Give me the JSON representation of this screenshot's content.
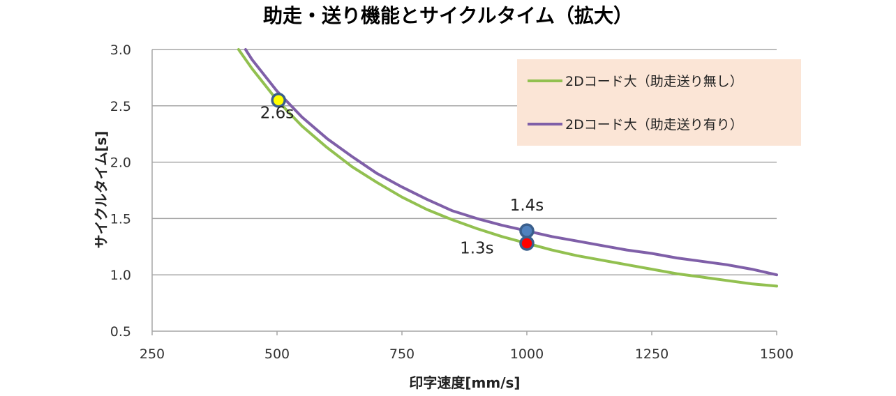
{
  "chart_data": {
    "type": "line",
    "title": "助走・送り機能とサイクルタイム（拡大）",
    "xlabel": "印字速度[mm/s]",
    "ylabel": "サイクルタイム[s]",
    "xlim": [
      250,
      1500
    ],
    "ylim": [
      0.5,
      3.0
    ],
    "x_ticks": [
      "250",
      "500",
      "750",
      "1000",
      "1250",
      "1500"
    ],
    "y_ticks": [
      "0.5",
      "1.0",
      "1.5",
      "2.0",
      "2.5",
      "3.0"
    ],
    "grid": true,
    "legend_position": "top-right",
    "legend_bg": "#fbe5d6",
    "series": [
      {
        "name": "2Dコード大（助走送り無し）",
        "color": "#92c050",
        "x": [
          423,
          450,
          500,
          550,
          600,
          650,
          700,
          750,
          800,
          850,
          900,
          950,
          1000,
          1050,
          1100,
          1150,
          1200,
          1250,
          1300,
          1350,
          1400,
          1450,
          1500
        ],
        "y": [
          3.0,
          2.83,
          2.55,
          2.32,
          2.13,
          1.96,
          1.82,
          1.69,
          1.58,
          1.49,
          1.41,
          1.34,
          1.28,
          1.22,
          1.17,
          1.13,
          1.09,
          1.05,
          1.01,
          0.98,
          0.95,
          0.92,
          0.9
        ]
      },
      {
        "name": "2Dコード大（助走送り有り）",
        "color": "#7f5fa8",
        "x": [
          437,
          450,
          500,
          550,
          600,
          650,
          700,
          750,
          800,
          850,
          900,
          950,
          1000,
          1050,
          1100,
          1150,
          1200,
          1250,
          1300,
          1350,
          1400,
          1450,
          1500
        ],
        "y": [
          3.0,
          2.91,
          2.63,
          2.4,
          2.21,
          2.05,
          1.9,
          1.78,
          1.67,
          1.57,
          1.5,
          1.44,
          1.39,
          1.34,
          1.3,
          1.26,
          1.22,
          1.19,
          1.15,
          1.12,
          1.09,
          1.05,
          1.0
        ]
      }
    ],
    "markers": [
      {
        "x": 503,
        "y": 2.55,
        "fill": "#ffff00",
        "stroke": "#3a5f8c"
      },
      {
        "x": 1000,
        "y": 1.39,
        "fill": "#4f81bd",
        "stroke": "#3a5f8c"
      },
      {
        "x": 1000,
        "y": 1.28,
        "fill": "#ff0000",
        "stroke": "#3a5f8c"
      }
    ],
    "annotations": [
      {
        "text": "2.6s",
        "x": 500,
        "y": 2.39
      },
      {
        "text": "1.4s",
        "x": 1000,
        "y": 1.57
      },
      {
        "text": "1.3s",
        "x": 900,
        "y": 1.19
      }
    ]
  }
}
